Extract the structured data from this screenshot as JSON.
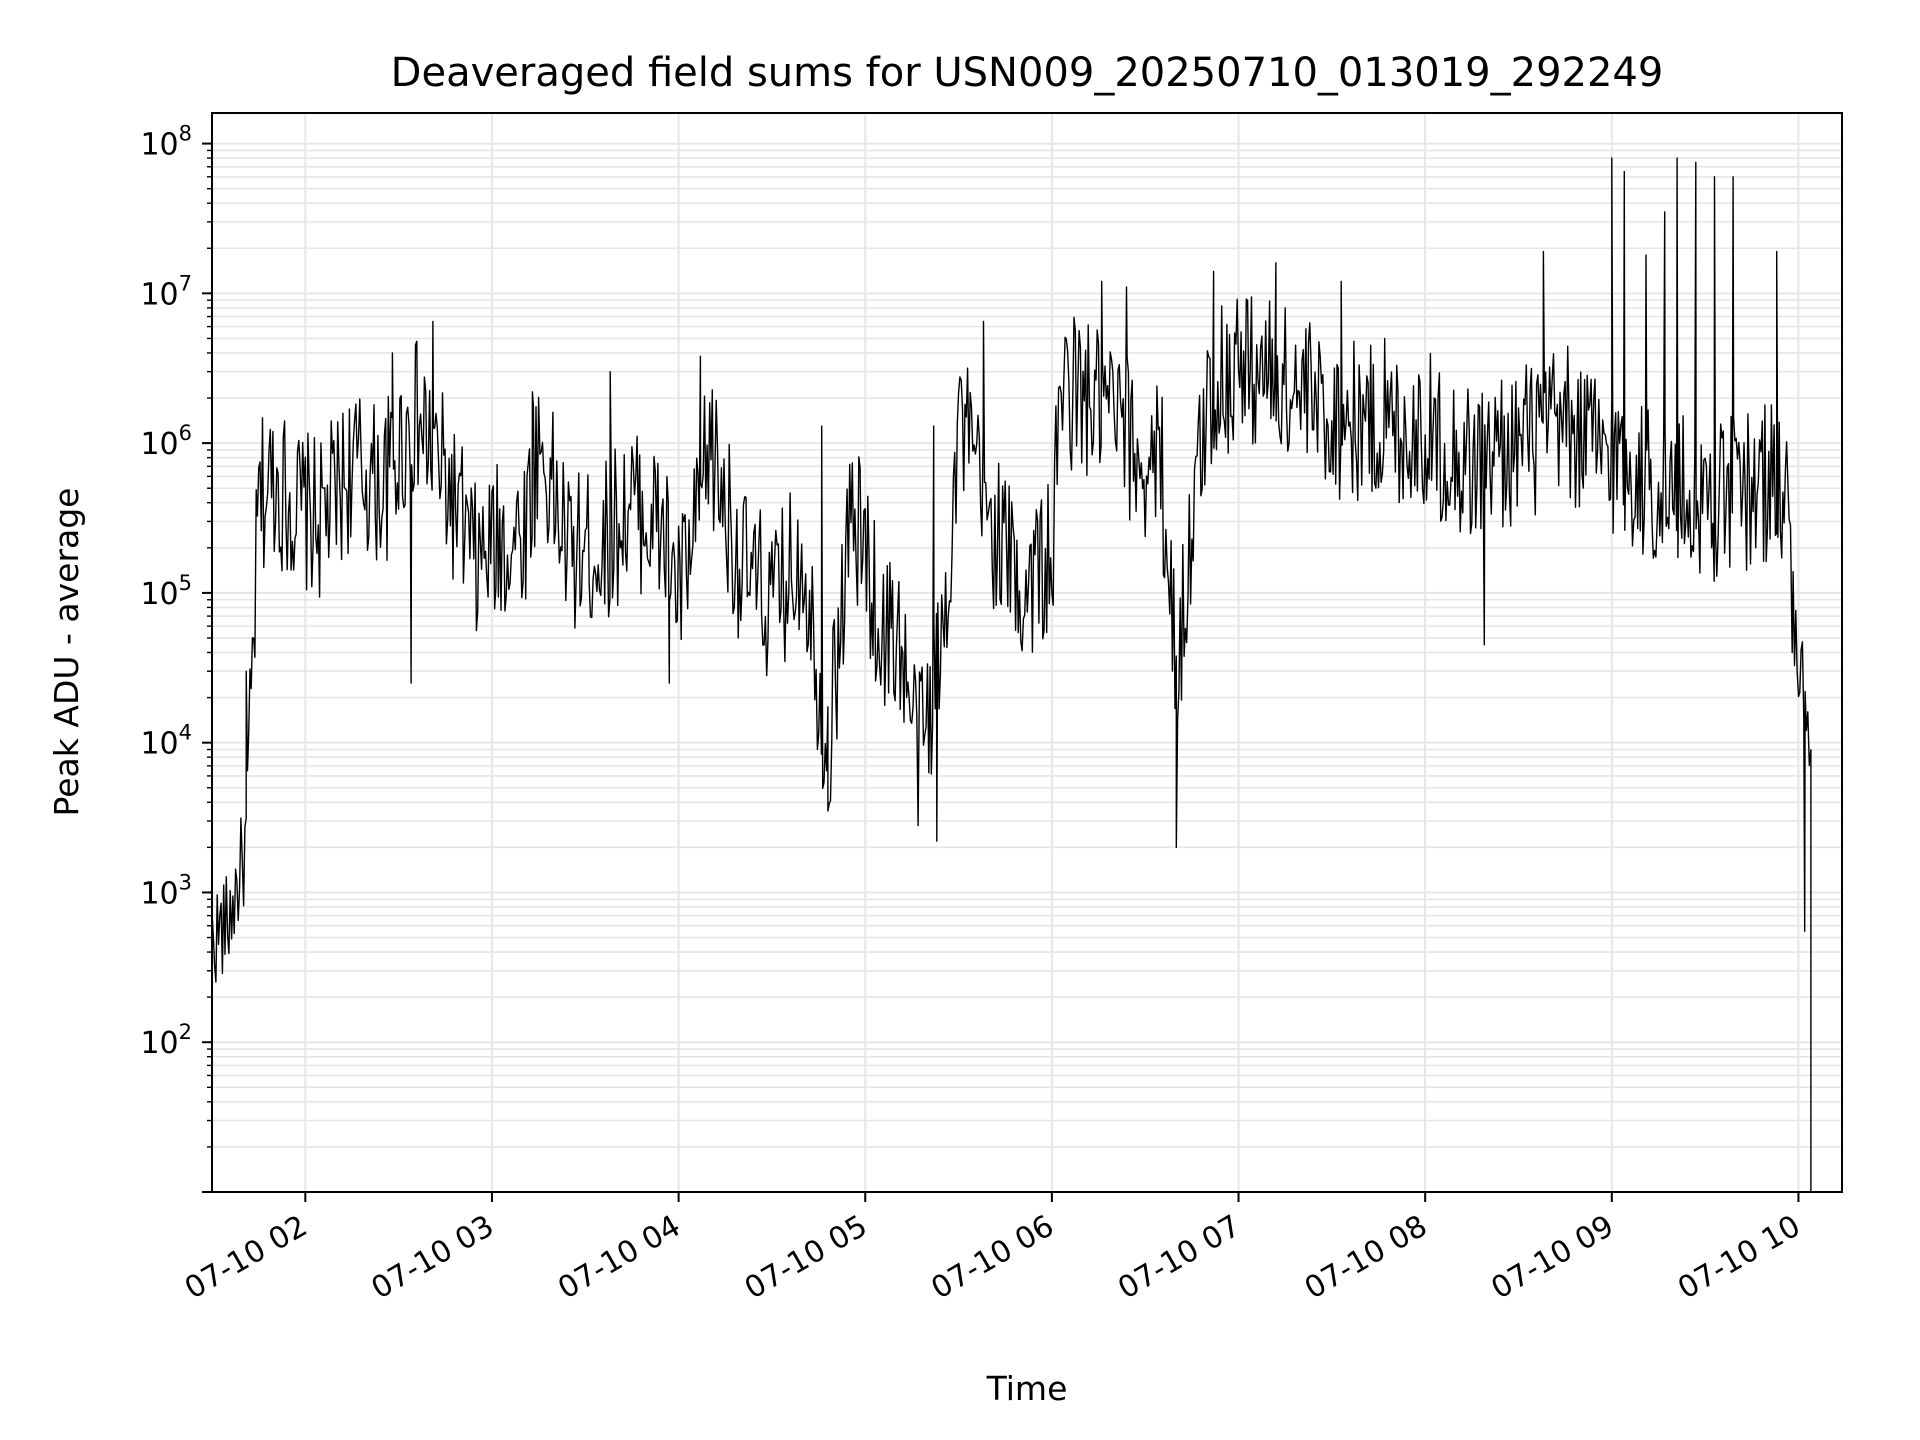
{
  "chart_data": {
    "type": "line",
    "title": "Deaveraged field sums for USN009_20250710_013019_292249",
    "xlabel": "Time",
    "ylabel": "Peak ADU - average",
    "y_scale": "log",
    "ylim": [
      10,
      160000000
    ],
    "xlim": [
      "07-10 01:30",
      "07-10 10:14"
    ],
    "grid": true,
    "line_color": "#000000",
    "grid_color": "#e6e6e6",
    "x_ticks": [
      {
        "label": "07-10 02",
        "value": "07-10 02:00"
      },
      {
        "label": "07-10 03",
        "value": "07-10 03:00"
      },
      {
        "label": "07-10 04",
        "value": "07-10 04:00"
      },
      {
        "label": "07-10 05",
        "value": "07-10 05:00"
      },
      {
        "label": "07-10 06",
        "value": "07-10 06:00"
      },
      {
        "label": "07-10 07",
        "value": "07-10 07:00"
      },
      {
        "label": "07-10 08",
        "value": "07-10 08:00"
      },
      {
        "label": "07-10 09",
        "value": "07-10 09:00"
      },
      {
        "label": "07-10 10",
        "value": "07-10 10:00"
      }
    ],
    "y_ticks": [
      {
        "base": "10",
        "exp": "2",
        "value": 100
      },
      {
        "base": "10",
        "exp": "3",
        "value": 1000
      },
      {
        "base": "10",
        "exp": "4",
        "value": 10000
      },
      {
        "base": "10",
        "exp": "5",
        "value": 100000
      },
      {
        "base": "10",
        "exp": "6",
        "value": 1000000
      },
      {
        "base": "10",
        "exp": "7",
        "value": 10000000
      },
      {
        "base": "10",
        "exp": "8",
        "value": 100000000
      }
    ],
    "series": [
      {
        "x": [
          "07-10 01:30",
          "07-10 01:35",
          "07-10 01:41",
          "07-10 01:45",
          "07-10 01:50",
          "07-10 01:55",
          "07-10 02:05",
          "07-10 02:15",
          "07-10 02:25",
          "07-10 02:35",
          "07-10 02:42",
          "07-10 02:50",
          "07-10 02:55",
          "07-10 03:00",
          "07-10 03:10",
          "07-10 03:15",
          "07-10 03:25",
          "07-10 03:35",
          "07-10 03:45",
          "07-10 03:55",
          "07-10 04:00",
          "07-10 04:05",
          "07-10 04:10",
          "07-10 04:20",
          "07-10 04:30",
          "07-10 04:40",
          "07-10 04:48",
          "07-10 04:55",
          "07-10 05:00",
          "07-10 05:05",
          "07-10 05:10",
          "07-10 05:17",
          "07-10 05:20",
          "07-10 05:25",
          "07-10 05:30",
          "07-10 05:35",
          "07-10 05:40",
          "07-10 05:45",
          "07-10 05:50",
          "07-10 05:55",
          "07-10 06:00",
          "07-10 06:03",
          "07-10 06:10",
          "07-10 06:20",
          "07-10 06:30",
          "07-10 06:35",
          "07-10 06:40",
          "07-10 06:50",
          "07-10 07:00",
          "07-10 07:15",
          "07-10 07:30",
          "07-10 07:45",
          "07-10 08:00",
          "07-10 08:15",
          "07-10 08:30",
          "07-10 08:45",
          "07-10 09:00",
          "07-10 09:15",
          "07-10 09:30",
          "07-10 09:45",
          "07-10 09:53",
          "07-10 09:57",
          "07-10 10:00",
          "07-10 10:03",
          "07-10 10:04"
        ],
        "y": [
          500,
          600,
          2000,
          400000,
          600000,
          400000,
          300000,
          700000,
          500000,
          1500000,
          800000,
          300000,
          150000,
          200000,
          250000,
          1000000,
          180000,
          200000,
          400000,
          250000,
          100000,
          200000,
          1000000,
          150000,
          80000,
          200000,
          8000,
          300000,
          200000,
          50000,
          60000,
          9000,
          15000,
          50000,
          1500000,
          700000,
          300000,
          200000,
          100000,
          150000,
          150000,
          2500000,
          2000000,
          1500000,
          700000,
          800000,
          30000,
          2000000,
          3500000,
          2500000,
          1500000,
          1300000,
          1200000,
          700000,
          1000000,
          1300000,
          800000,
          500000,
          400000,
          500000,
          600000,
          300000,
          20000,
          10000,
          9000
        ],
        "spikes": [
          {
            "x": "07-10 01:41",
            "y": 30000
          },
          {
            "x": "07-10 02:28",
            "y": 4000000
          },
          {
            "x": "07-10 02:34",
            "y": 25000
          },
          {
            "x": "07-10 02:41",
            "y": 6500000
          },
          {
            "x": "07-10 03:13",
            "y": 2200000
          },
          {
            "x": "07-10 03:38",
            "y": 3000000
          },
          {
            "x": "07-10 03:57",
            "y": 25000
          },
          {
            "x": "07-10 04:07",
            "y": 3800000
          },
          {
            "x": "07-10 04:46",
            "y": 1300000
          },
          {
            "x": "07-10 04:48",
            "y": 3500
          },
          {
            "x": "07-10 05:22",
            "y": 1300000
          },
          {
            "x": "07-10 05:23",
            "y": 2200
          },
          {
            "x": "07-10 05:38",
            "y": 6500000
          },
          {
            "x": "07-10 06:16",
            "y": 12000000
          },
          {
            "x": "07-10 06:24",
            "y": 11000000
          },
          {
            "x": "07-10 06:40",
            "y": 2000
          },
          {
            "x": "07-10 06:52",
            "y": 14000000
          },
          {
            "x": "07-10 07:12",
            "y": 16000000
          },
          {
            "x": "07-10 07:33",
            "y": 12000000
          },
          {
            "x": "07-10 07:47",
            "y": 5000000
          },
          {
            "x": "07-10 08:19",
            "y": 45000
          },
          {
            "x": "07-10 08:38",
            "y": 19000000
          },
          {
            "x": "07-10 09:00",
            "y": 80000000
          },
          {
            "x": "07-10 09:04",
            "y": 65000000
          },
          {
            "x": "07-10 09:11",
            "y": 18000000
          },
          {
            "x": "07-10 09:17",
            "y": 35000000
          },
          {
            "x": "07-10 09:21",
            "y": 80000000
          },
          {
            "x": "07-10 09:27",
            "y": 75000000
          },
          {
            "x": "07-10 09:33",
            "y": 60000000
          },
          {
            "x": "07-10 09:39",
            "y": 60000000
          },
          {
            "x": "07-10 09:53",
            "y": 19000000
          },
          {
            "x": "07-10 09:58",
            "y": 40000
          },
          {
            "x": "07-10 10:02",
            "y": 550
          }
        ]
      }
    ]
  }
}
